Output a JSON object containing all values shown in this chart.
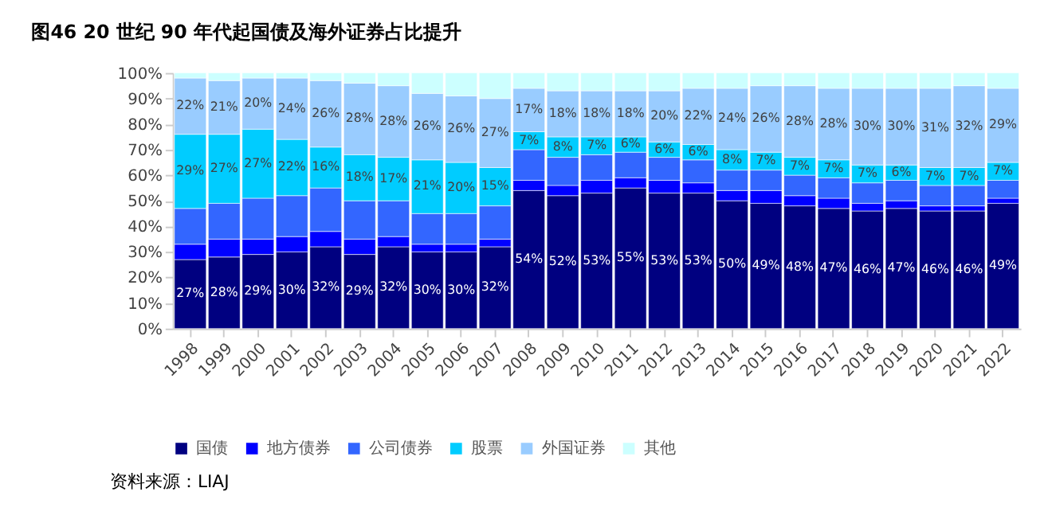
{
  "chart_data": {
    "type": "bar",
    "title": "图46 20 世纪 90 年代起国债及海外证券占比提升",
    "stacked": true,
    "categories": [
      "1998",
      "1999",
      "2000",
      "2001",
      "2002",
      "2003",
      "2004",
      "2005",
      "2006",
      "2007",
      "2008",
      "2009",
      "2010",
      "2011",
      "2012",
      "2013",
      "2014",
      "2015",
      "2016",
      "2017",
      "2018",
      "2019",
      "2020",
      "2021",
      "2022"
    ],
    "series": [
      {
        "name": "国债",
        "color": "#000080",
        "values": [
          27,
          28,
          29,
          30,
          32,
          29,
          32,
          30,
          30,
          32,
          54,
          52,
          53,
          55,
          53,
          53,
          50,
          49,
          48,
          47,
          46,
          47,
          46,
          46,
          49
        ],
        "value_labels": [
          "27%",
          "28%",
          "29%",
          "30%",
          "32%",
          "29%",
          "32%",
          "30%",
          "30%",
          "32%",
          "54%",
          "52%",
          "53%",
          "55%",
          "53%",
          "53%",
          "50%",
          "49%",
          "48%",
          "47%",
          "46%",
          "47%",
          "46%",
          "46%",
          "49%"
        ]
      },
      {
        "name": "地方债券",
        "color": "#0000ff",
        "values": [
          6,
          7,
          6,
          6,
          6,
          6,
          4,
          3,
          3,
          3,
          4,
          4,
          5,
          4,
          5,
          4,
          4,
          5,
          4,
          4,
          3,
          3,
          2,
          2,
          2
        ]
      },
      {
        "name": "公司债券",
        "color": "#3366ff",
        "values": [
          14,
          14,
          16,
          16,
          17,
          15,
          14,
          12,
          12,
          13,
          12,
          11,
          10,
          10,
          9,
          9,
          8,
          8,
          8,
          8,
          8,
          8,
          8,
          8,
          7
        ]
      },
      {
        "name": "股票",
        "color": "#00ccff",
        "values": [
          29,
          27,
          27,
          22,
          16,
          18,
          17,
          21,
          20,
          15,
          7,
          8,
          7,
          6,
          6,
          6,
          8,
          7,
          7,
          7,
          7,
          6,
          7,
          7,
          7
        ],
        "value_labels": [
          "29%",
          "27%",
          "27%",
          "22%",
          "16%",
          "18%",
          "17%",
          "21%",
          "20%",
          "15%",
          "7%",
          "8%",
          "7%",
          "6%",
          "6%",
          "6%",
          "8%",
          "7%",
          "7%",
          "7%",
          "7%",
          "6%",
          "7%",
          "7%",
          "7%"
        ]
      },
      {
        "name": "外国证券",
        "color": "#99ccff",
        "values": [
          22,
          21,
          20,
          24,
          26,
          28,
          28,
          26,
          26,
          27,
          17,
          18,
          18,
          18,
          20,
          22,
          24,
          26,
          28,
          28,
          30,
          30,
          31,
          32,
          29
        ],
        "value_labels": [
          "22%",
          "21%",
          "20%",
          "24%",
          "26%",
          "28%",
          "28%",
          "26%",
          "26%",
          "27%",
          "17%",
          "18%",
          "18%",
          "18%",
          "20%",
          "22%",
          "24%",
          "26%",
          "28%",
          "28%",
          "30%",
          "30%",
          "31%",
          "32%",
          "29%"
        ]
      },
      {
        "name": "其他",
        "color": "#ccffff",
        "values": [
          2,
          3,
          2,
          2,
          3,
          4,
          5,
          8,
          9,
          10,
          6,
          7,
          7,
          7,
          7,
          6,
          6,
          5,
          5,
          6,
          6,
          6,
          6,
          5,
          6
        ]
      }
    ],
    "ylim": [
      0,
      100
    ],
    "yticks": [
      {
        "value": 0,
        "label": "0%"
      },
      {
        "value": 10,
        "label": "10%"
      },
      {
        "value": 20,
        "label": "20%"
      },
      {
        "value": 30,
        "label": "30%"
      },
      {
        "value": 40,
        "label": "40%"
      },
      {
        "value": 50,
        "label": "50%"
      },
      {
        "value": 60,
        "label": "60%"
      },
      {
        "value": 70,
        "label": "70%"
      },
      {
        "value": 80,
        "label": "80%"
      },
      {
        "value": 90,
        "label": "90%"
      },
      {
        "value": 100,
        "label": "100%"
      }
    ],
    "grid": false,
    "legend": "bottom",
    "annotations": [
      "资料来源：LIAJ"
    ]
  }
}
